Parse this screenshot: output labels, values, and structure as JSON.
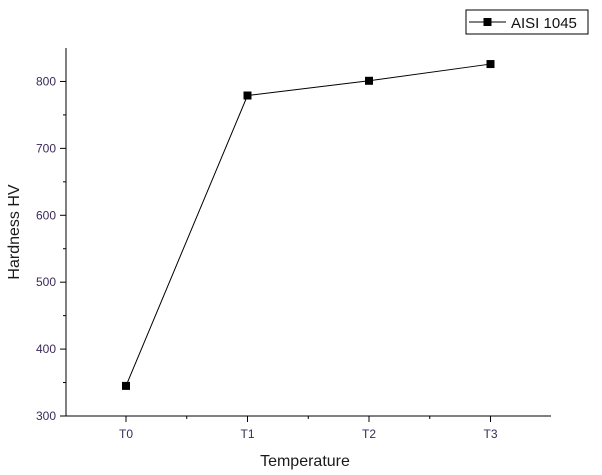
{
  "chart_data": {
    "type": "line",
    "title": "",
    "xlabel": "Temperature",
    "ylabel": "Hardness HV",
    "categories": [
      "T0",
      "T1",
      "T2",
      "T3"
    ],
    "series": [
      {
        "name": "AISI 1045",
        "values": [
          345,
          779,
          801,
          826
        ],
        "marker": "square",
        "color": "#000000"
      }
    ],
    "ylim": [
      300,
      850
    ],
    "yticks": [
      300,
      400,
      500,
      600,
      700,
      800
    ],
    "grid": false,
    "legend_position": "top-right"
  }
}
